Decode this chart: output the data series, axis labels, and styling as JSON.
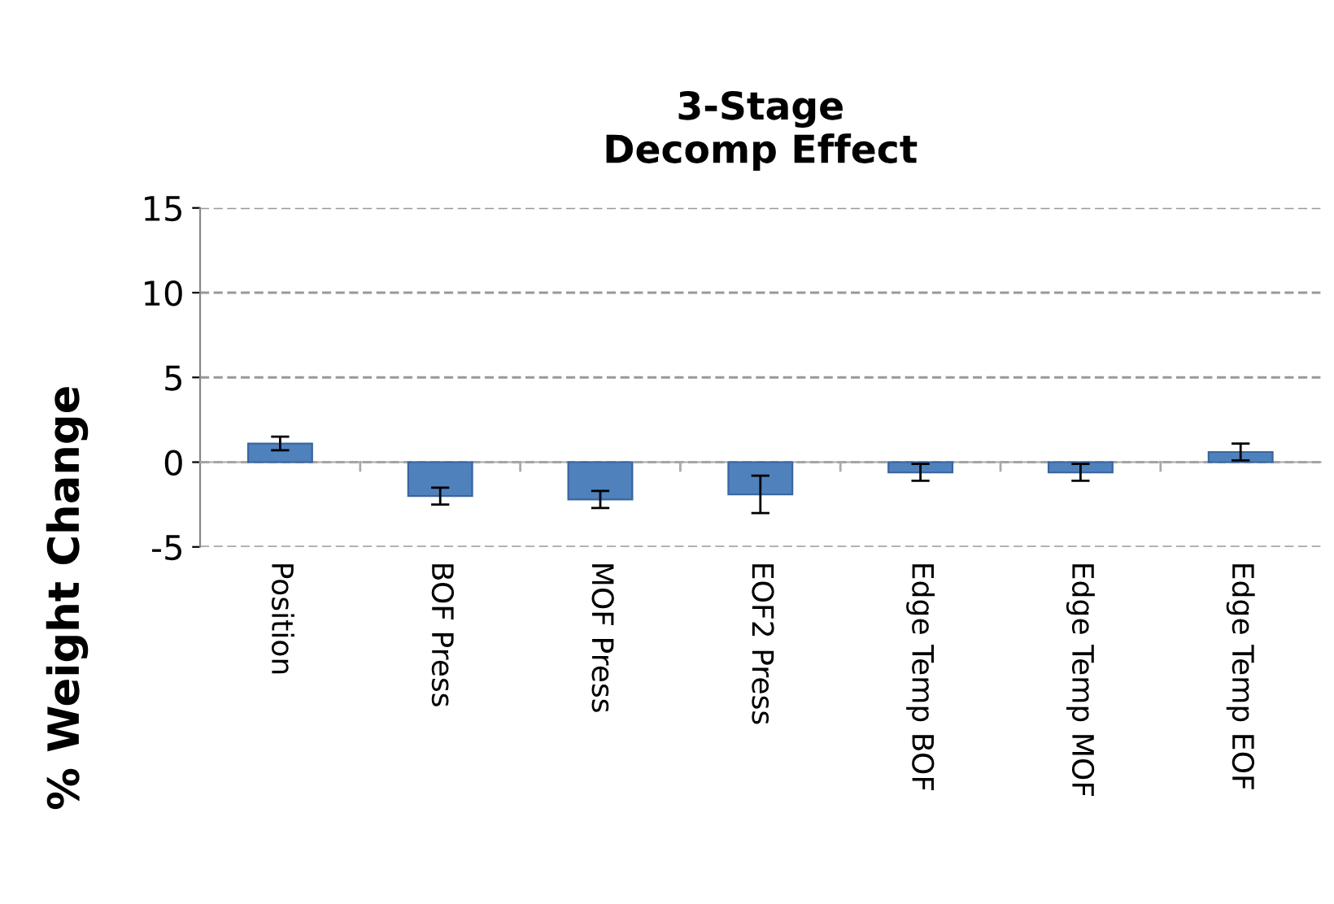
{
  "chart_data": {
    "type": "bar",
    "title": "3-Stage\nDecomp Effect",
    "ylabel": "% Weight Change",
    "categories": [
      "Position",
      "BOF Press",
      "MOF Press",
      "EOF2 Press",
      "Edge Temp BOF",
      "Edge Temp MOF",
      "Edge Temp EOF"
    ],
    "values": [
      1.1,
      -2.0,
      -2.2,
      -1.9,
      -0.6,
      -0.6,
      0.6
    ],
    "errors": [
      0.4,
      0.5,
      0.5,
      1.1,
      0.5,
      0.5,
      0.5
    ],
    "color": "#4f81bd",
    "ylim": [
      -5,
      15
    ],
    "yticks": [
      -5,
      0,
      5,
      10,
      15
    ],
    "grid": "y"
  }
}
